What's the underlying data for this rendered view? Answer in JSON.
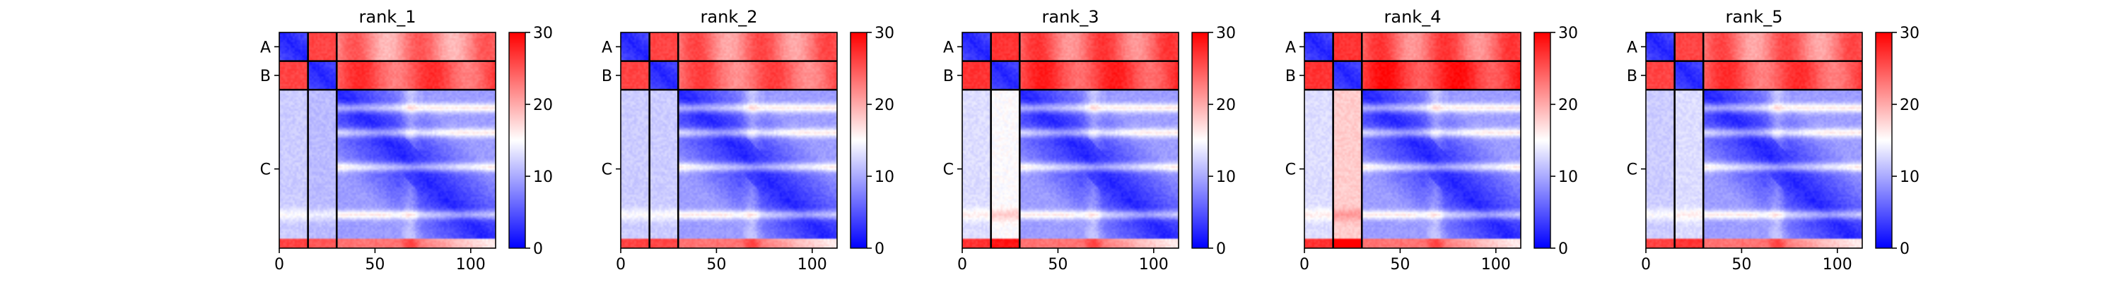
{
  "chart_data": {
    "type": "heatmap",
    "description_kind": "predicted aligned error (PAE) matrices",
    "colormap": {
      "name": "bwr",
      "low": "#0000ff",
      "mid": "#ffffff",
      "high": "#ff0000"
    },
    "value_range": [
      0,
      30
    ],
    "colorbar_ticks": [
      0,
      10,
      20,
      30
    ],
    "x_ticks": [
      0,
      50,
      100
    ],
    "n_residues": 113,
    "chains": [
      {
        "label": "A",
        "start": 0,
        "end": 15
      },
      {
        "label": "B",
        "start": 15,
        "end": 30
      },
      {
        "label": "C",
        "start": 30,
        "end": 113
      }
    ],
    "panels": [
      {
        "title": "rank_1",
        "offdiag_ab": 26,
        "offdiag_a_c": 22,
        "offdiag_b_c": 25,
        "c_to_a": 12,
        "c_to_b": 11
      },
      {
        "title": "rank_2",
        "offdiag_ab": 26,
        "offdiag_a_c": 23,
        "offdiag_b_c": 24,
        "c_to_a": 12,
        "c_to_b": 12
      },
      {
        "title": "rank_3",
        "offdiag_ab": 27,
        "offdiag_a_c": 24,
        "offdiag_b_c": 26,
        "c_to_a": 13,
        "c_to_b": 15
      },
      {
        "title": "rank_4",
        "offdiag_ab": 27,
        "offdiag_a_c": 24,
        "offdiag_b_c": 27,
        "c_to_a": 13,
        "c_to_b": 18
      },
      {
        "title": "rank_5",
        "offdiag_ab": 26,
        "offdiag_a_c": 23,
        "offdiag_b_c": 25,
        "c_to_a": 12,
        "c_to_b": 13
      }
    ]
  }
}
